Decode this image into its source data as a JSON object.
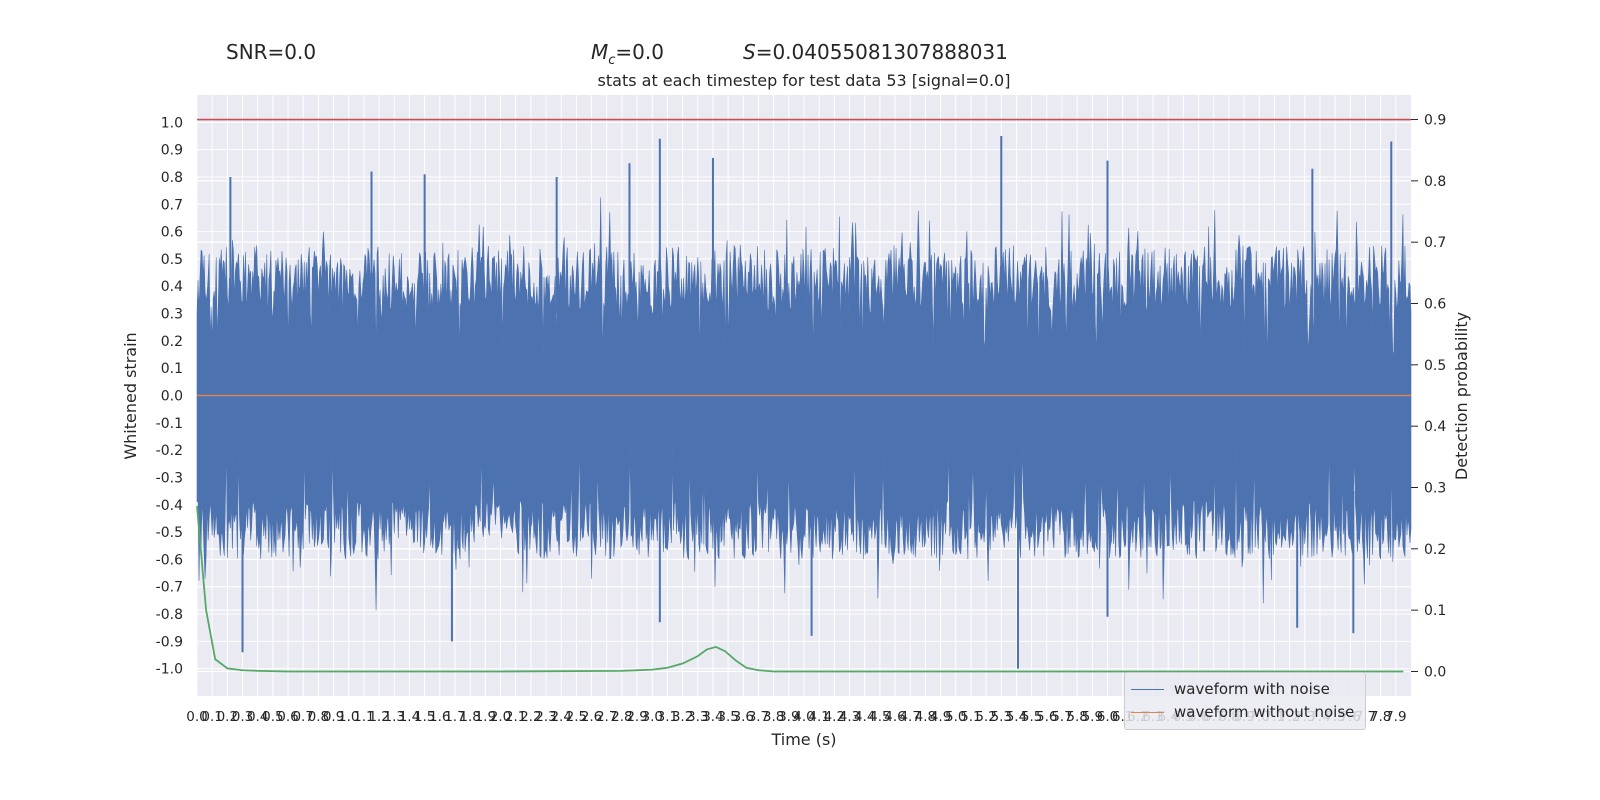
{
  "header": {
    "snr_text": "SNR=0.0",
    "mc_symbol": "M",
    "mc_subscript": "c",
    "mc_value": "=0.0",
    "s_symbol": "S",
    "s_value": "=0.04055081307888031"
  },
  "chart_data": {
    "type": "line",
    "title": "stats at each timestep for test data 53 [signal=0.0]",
    "xlabel": "Time (s)",
    "ylabel": "Whitened strain",
    "y2label": "Detection probability",
    "xlim": [
      0.0,
      8.0
    ],
    "ylim": [
      -1.1,
      1.1
    ],
    "y2lim": [
      -0.04,
      0.94
    ],
    "grid": true,
    "legend_position": "lower-right",
    "x_ticks": [
      "0.0",
      "0.1",
      "0.2",
      "0.3",
      "0.4",
      "0.5",
      "0.6",
      "0.7",
      "0.8",
      "0.9",
      "1.0",
      "1.1",
      "1.2",
      "1.3",
      "1.4",
      "1.5",
      "1.6",
      "1.7",
      "1.8",
      "1.9",
      "2.0",
      "2.1",
      "2.2",
      "2.3",
      "2.4",
      "2.5",
      "2.6",
      "2.7",
      "2.8",
      "2.9",
      "3.0",
      "3.1",
      "3.2",
      "3.3",
      "3.4",
      "3.5",
      "3.6",
      "3.7",
      "3.8",
      "3.9",
      "4.0",
      "4.1",
      "4.2",
      "4.3",
      "4.4",
      "4.5",
      "4.6",
      "4.7",
      "4.8",
      "4.9",
      "5.0",
      "5.1",
      "5.2",
      "5.3",
      "5.4",
      "5.5",
      "5.6",
      "5.7",
      "5.8",
      "5.9",
      "6.0",
      "6.1",
      "6.2",
      "6.3",
      "6.4",
      "6.5",
      "6.6",
      "6.7",
      "6.8",
      "6.9",
      "7.0",
      "7.1",
      "7.2",
      "7.3",
      "7.4",
      "7.5",
      "7.6",
      "7.7",
      "7.8",
      "7.9"
    ],
    "y_ticks": [
      "1.0",
      "0.9",
      "0.8",
      "0.7",
      "0.6",
      "0.5",
      "0.4",
      "0.3",
      "0.2",
      "0.1",
      "0.0",
      "-0.1",
      "-0.2",
      "-0.3",
      "-0.4",
      "-0.5",
      "-0.6",
      "-0.7",
      "-0.8",
      "-0.9",
      "-1.0"
    ],
    "y2_ticks": [
      "0.9",
      "0.8",
      "0.7",
      "0.6",
      "0.5",
      "0.4",
      "0.3",
      "0.2",
      "0.1",
      "0.0"
    ],
    "series": [
      {
        "name": "waveform with noise",
        "color": "#4c72b0",
        "envelope_max": 0.95,
        "envelope_min": -1.0,
        "typical_range": [
          -0.5,
          0.5
        ],
        "peaks": [
          {
            "x": 0.22,
            "y": 0.8
          },
          {
            "x": 1.15,
            "y": 0.82
          },
          {
            "x": 1.5,
            "y": 0.81
          },
          {
            "x": 2.37,
            "y": 0.8
          },
          {
            "x": 2.85,
            "y": 0.85
          },
          {
            "x": 3.05,
            "y": 0.94
          },
          {
            "x": 3.4,
            "y": 0.87
          },
          {
            "x": 5.3,
            "y": 0.95
          },
          {
            "x": 6.0,
            "y": 0.86
          },
          {
            "x": 7.35,
            "y": 0.83
          },
          {
            "x": 7.87,
            "y": 0.93
          }
        ],
        "troughs": [
          {
            "x": 0.3,
            "y": -0.94
          },
          {
            "x": 1.68,
            "y": -0.9
          },
          {
            "x": 3.05,
            "y": -0.83
          },
          {
            "x": 4.05,
            "y": -0.88
          },
          {
            "x": 5.41,
            "y": -1.0
          },
          {
            "x": 6.0,
            "y": -0.81
          },
          {
            "x": 7.25,
            "y": -0.85
          },
          {
            "x": 7.62,
            "y": -0.87
          }
        ]
      },
      {
        "name": "waveform without noise",
        "color": "#dd8452",
        "constant": 0.0
      },
      {
        "name": "detection probability",
        "color": "#55a868",
        "axis": "y2",
        "x": [
          0.0,
          0.06,
          0.12,
          0.2,
          0.3,
          0.4,
          0.6,
          1.0,
          2.0,
          2.8,
          3.0,
          3.1,
          3.2,
          3.3,
          3.36,
          3.42,
          3.48,
          3.55,
          3.62,
          3.7,
          3.8,
          4.0,
          5.0,
          6.0,
          7.0,
          7.95
        ],
        "values": [
          0.27,
          0.1,
          0.02,
          0.005,
          0.002,
          0.001,
          0.0,
          0.0,
          0.0,
          0.001,
          0.003,
          0.006,
          0.013,
          0.025,
          0.036,
          0.04,
          0.033,
          0.018,
          0.006,
          0.002,
          0.0,
          0.0,
          0.0,
          0.0,
          0.0,
          0.0
        ]
      }
    ],
    "threshold": {
      "axis": "y2",
      "value": 0.9,
      "color": "#c44e52"
    }
  }
}
